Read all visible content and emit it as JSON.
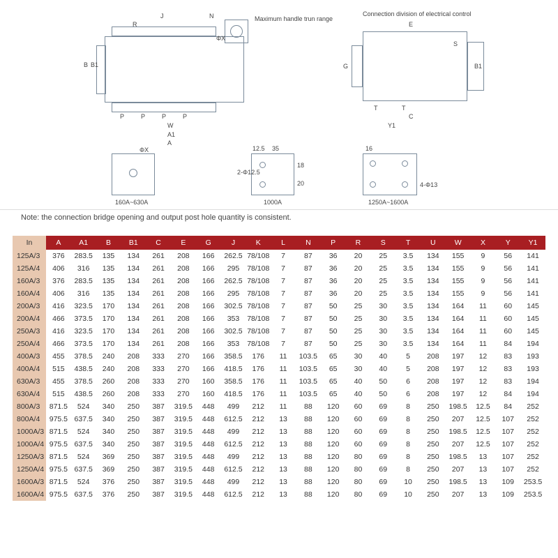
{
  "diagram": {
    "labels": {
      "max_handle": "Maximum handle trun range",
      "conn_div": "Connection division of electrical control",
      "range1": "160A~630A",
      "range2": "1000A",
      "range3": "1250A~1600A",
      "phix": "ΦX",
      "twophi125": "2-Φ12.5",
      "fourphi13": "4-Φ13",
      "d125": "12.5",
      "d35": "35",
      "d18": "18",
      "d20": "20",
      "d16": "16"
    }
  },
  "note": "Note: the connection bridge opening and output post hole quantity is consistent.",
  "table": {
    "header_bg": "#a81e22",
    "header_fg": "#ffffff",
    "firstcol_bg": "#e8c8b0",
    "columns": [
      "In",
      "A",
      "A1",
      "B",
      "B1",
      "C",
      "E",
      "G",
      "J",
      "K",
      "L",
      "N",
      "P",
      "R",
      "S",
      "T",
      "U",
      "W",
      "X",
      "Y",
      "Y1"
    ],
    "rows": [
      [
        "125A/3",
        "376",
        "283.5",
        "135",
        "134",
        "261",
        "208",
        "166",
        "262.5",
        "78/108",
        "7",
        "87",
        "36",
        "20",
        "25",
        "3.5",
        "134",
        "155",
        "9",
        "56",
        "141"
      ],
      [
        "125A/4",
        "406",
        "316",
        "135",
        "134",
        "261",
        "208",
        "166",
        "295",
        "78/108",
        "7",
        "87",
        "36",
        "20",
        "25",
        "3.5",
        "134",
        "155",
        "9",
        "56",
        "141"
      ],
      [
        "160A/3",
        "376",
        "283.5",
        "135",
        "134",
        "261",
        "208",
        "166",
        "262.5",
        "78/108",
        "7",
        "87",
        "36",
        "20",
        "25",
        "3.5",
        "134",
        "155",
        "9",
        "56",
        "141"
      ],
      [
        "160A/4",
        "406",
        "316",
        "135",
        "134",
        "261",
        "208",
        "166",
        "295",
        "78/108",
        "7",
        "87",
        "36",
        "20",
        "25",
        "3.5",
        "134",
        "155",
        "9",
        "56",
        "141"
      ],
      [
        "200A/3",
        "416",
        "323.5",
        "170",
        "134",
        "261",
        "208",
        "166",
        "302.5",
        "78/108",
        "7",
        "87",
        "50",
        "25",
        "30",
        "3.5",
        "134",
        "164",
        "11",
        "60",
        "145"
      ],
      [
        "200A/4",
        "466",
        "373.5",
        "170",
        "134",
        "261",
        "208",
        "166",
        "353",
        "78/108",
        "7",
        "87",
        "50",
        "25",
        "30",
        "3.5",
        "134",
        "164",
        "11",
        "60",
        "145"
      ],
      [
        "250A/3",
        "416",
        "323.5",
        "170",
        "134",
        "261",
        "208",
        "166",
        "302.5",
        "78/108",
        "7",
        "87",
        "50",
        "25",
        "30",
        "3.5",
        "134",
        "164",
        "11",
        "60",
        "145"
      ],
      [
        "250A/4",
        "466",
        "373.5",
        "170",
        "134",
        "261",
        "208",
        "166",
        "353",
        "78/108",
        "7",
        "87",
        "50",
        "25",
        "30",
        "3.5",
        "134",
        "164",
        "11",
        "84",
        "194"
      ],
      [
        "400A/3",
        "455",
        "378.5",
        "240",
        "208",
        "333",
        "270",
        "166",
        "358.5",
        "176",
        "11",
        "103.5",
        "65",
        "30",
        "40",
        "5",
        "208",
        "197",
        "12",
        "83",
        "193"
      ],
      [
        "400A/4",
        "515",
        "438.5",
        "240",
        "208",
        "333",
        "270",
        "166",
        "418.5",
        "176",
        "11",
        "103.5",
        "65",
        "30",
        "40",
        "5",
        "208",
        "197",
        "12",
        "83",
        "193"
      ],
      [
        "630A/3",
        "455",
        "378.5",
        "260",
        "208",
        "333",
        "270",
        "160",
        "358.5",
        "176",
        "11",
        "103.5",
        "65",
        "40",
        "50",
        "6",
        "208",
        "197",
        "12",
        "83",
        "194"
      ],
      [
        "630A/4",
        "515",
        "438.5",
        "260",
        "208",
        "333",
        "270",
        "160",
        "418.5",
        "176",
        "11",
        "103.5",
        "65",
        "40",
        "50",
        "6",
        "208",
        "197",
        "12",
        "84",
        "194"
      ],
      [
        "800A/3",
        "871.5",
        "524",
        "340",
        "250",
        "387",
        "319.5",
        "448",
        "499",
        "212",
        "11",
        "88",
        "120",
        "60",
        "69",
        "8",
        "250",
        "198.5",
        "12.5",
        "84",
        "252"
      ],
      [
        "800A/4",
        "975.5",
        "637.5",
        "340",
        "250",
        "387",
        "319.5",
        "448",
        "612.5",
        "212",
        "13",
        "88",
        "120",
        "60",
        "69",
        "8",
        "250",
        "207",
        "12.5",
        "107",
        "252"
      ],
      [
        "1000A/3",
        "871.5",
        "524",
        "340",
        "250",
        "387",
        "319.5",
        "448",
        "499",
        "212",
        "13",
        "88",
        "120",
        "60",
        "69",
        "8",
        "250",
        "198.5",
        "12.5",
        "107",
        "252"
      ],
      [
        "1000A/4",
        "975.5",
        "637.5",
        "340",
        "250",
        "387",
        "319.5",
        "448",
        "612.5",
        "212",
        "13",
        "88",
        "120",
        "60",
        "69",
        "8",
        "250",
        "207",
        "12.5",
        "107",
        "252"
      ],
      [
        "1250A/3",
        "871.5",
        "524",
        "369",
        "250",
        "387",
        "319.5",
        "448",
        "499",
        "212",
        "13",
        "88",
        "120",
        "80",
        "69",
        "8",
        "250",
        "198.5",
        "13",
        "107",
        "252"
      ],
      [
        "1250A/4",
        "975.5",
        "637.5",
        "369",
        "250",
        "387",
        "319.5",
        "448",
        "612.5",
        "212",
        "13",
        "88",
        "120",
        "80",
        "69",
        "8",
        "250",
        "207",
        "13",
        "107",
        "252"
      ],
      [
        "1600A/3",
        "871.5",
        "524",
        "376",
        "250",
        "387",
        "319.5",
        "448",
        "499",
        "212",
        "13",
        "88",
        "120",
        "80",
        "69",
        "10",
        "250",
        "198.5",
        "13",
        "109",
        "253.5"
      ],
      [
        "1600A/4",
        "975.5",
        "637.5",
        "376",
        "250",
        "387",
        "319.5",
        "448",
        "612.5",
        "212",
        "13",
        "88",
        "120",
        "80",
        "69",
        "10",
        "250",
        "207",
        "13",
        "109",
        "253.5"
      ]
    ]
  }
}
